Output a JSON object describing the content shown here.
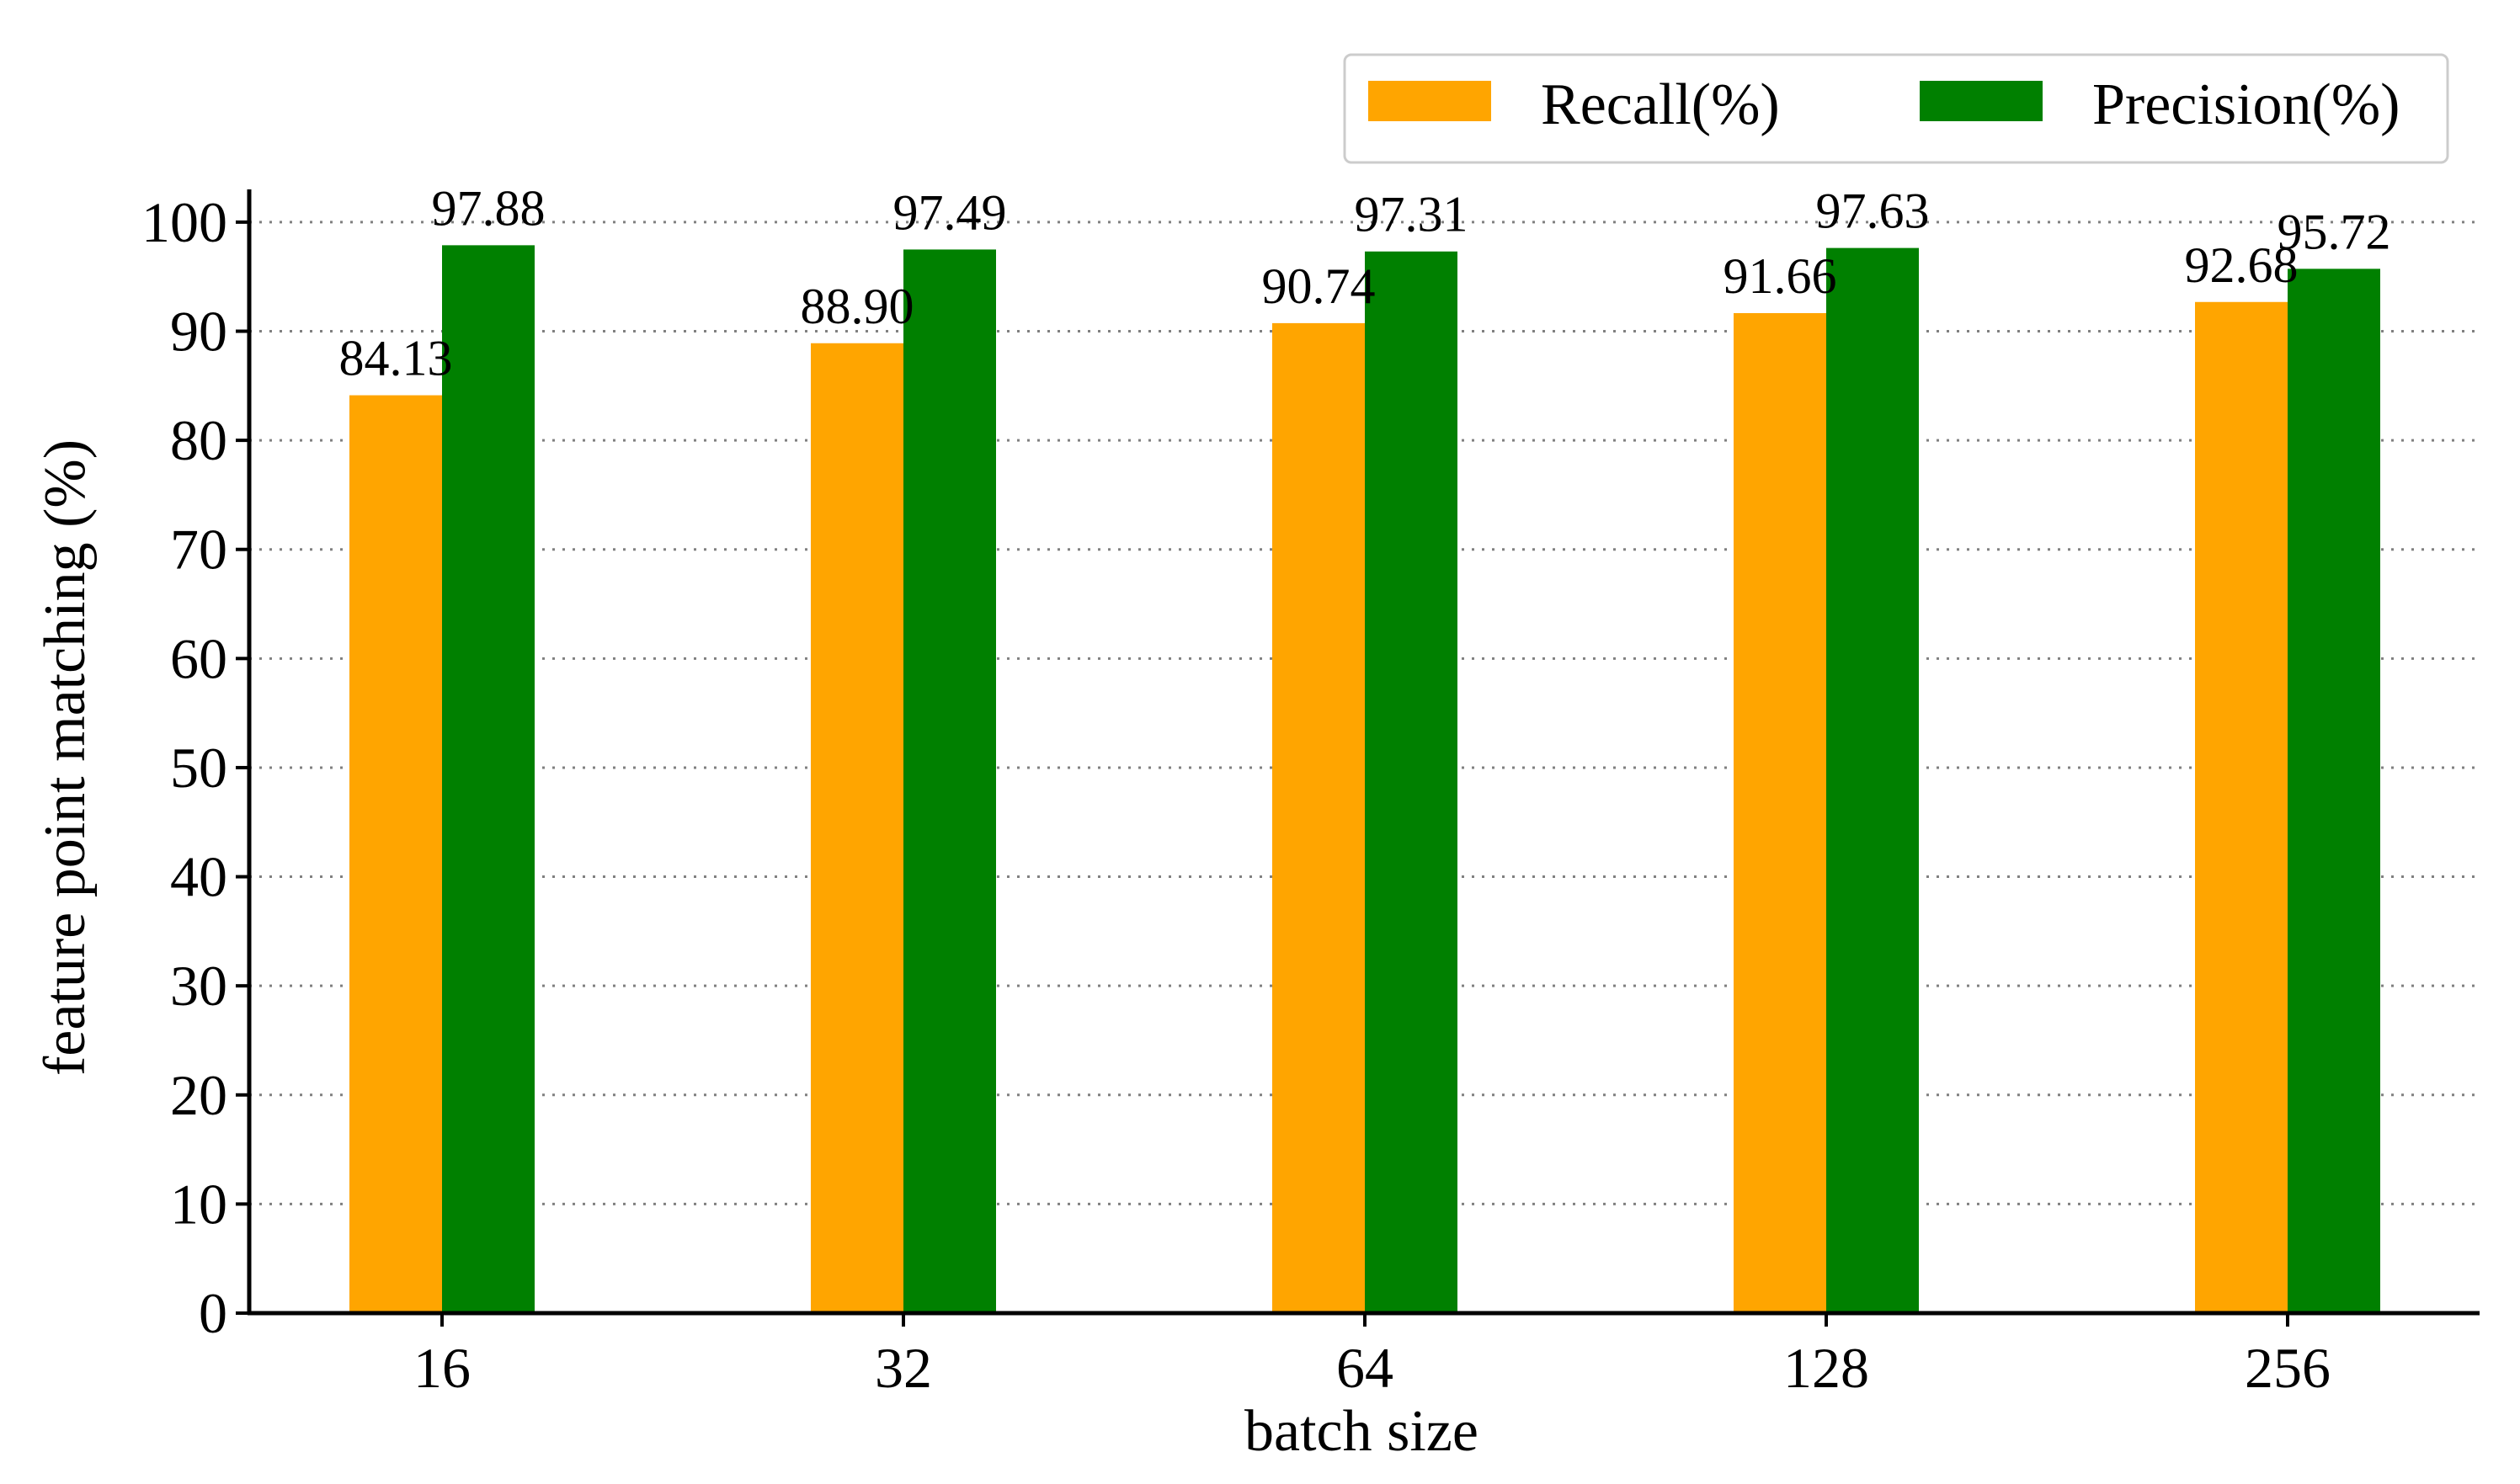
{
  "chart_data": {
    "type": "bar",
    "title": "",
    "xlabel": "batch size",
    "ylabel": "feature point matching (%)",
    "categories": [
      "16",
      "32",
      "64",
      "128",
      "256"
    ],
    "series": [
      {
        "name": "Recall(%)",
        "color": "#FFA500",
        "values": [
          84.13,
          88.9,
          90.74,
          91.66,
          92.68
        ],
        "labels": [
          "84.13",
          "88.90",
          "90.74",
          "91.66",
          "92.68"
        ]
      },
      {
        "name": "Precision(%)",
        "color": "#008000",
        "values": [
          97.88,
          97.49,
          97.31,
          97.63,
          95.72
        ],
        "labels": [
          "97.88",
          "97.49",
          "97.31",
          "97.63",
          "95.72"
        ]
      }
    ],
    "ylim": [
      0,
      103
    ],
    "yticks": [
      0,
      10,
      20,
      30,
      40,
      50,
      60,
      70,
      80,
      90,
      100
    ],
    "grid": "horizontal dotted",
    "legend": "top-right"
  }
}
